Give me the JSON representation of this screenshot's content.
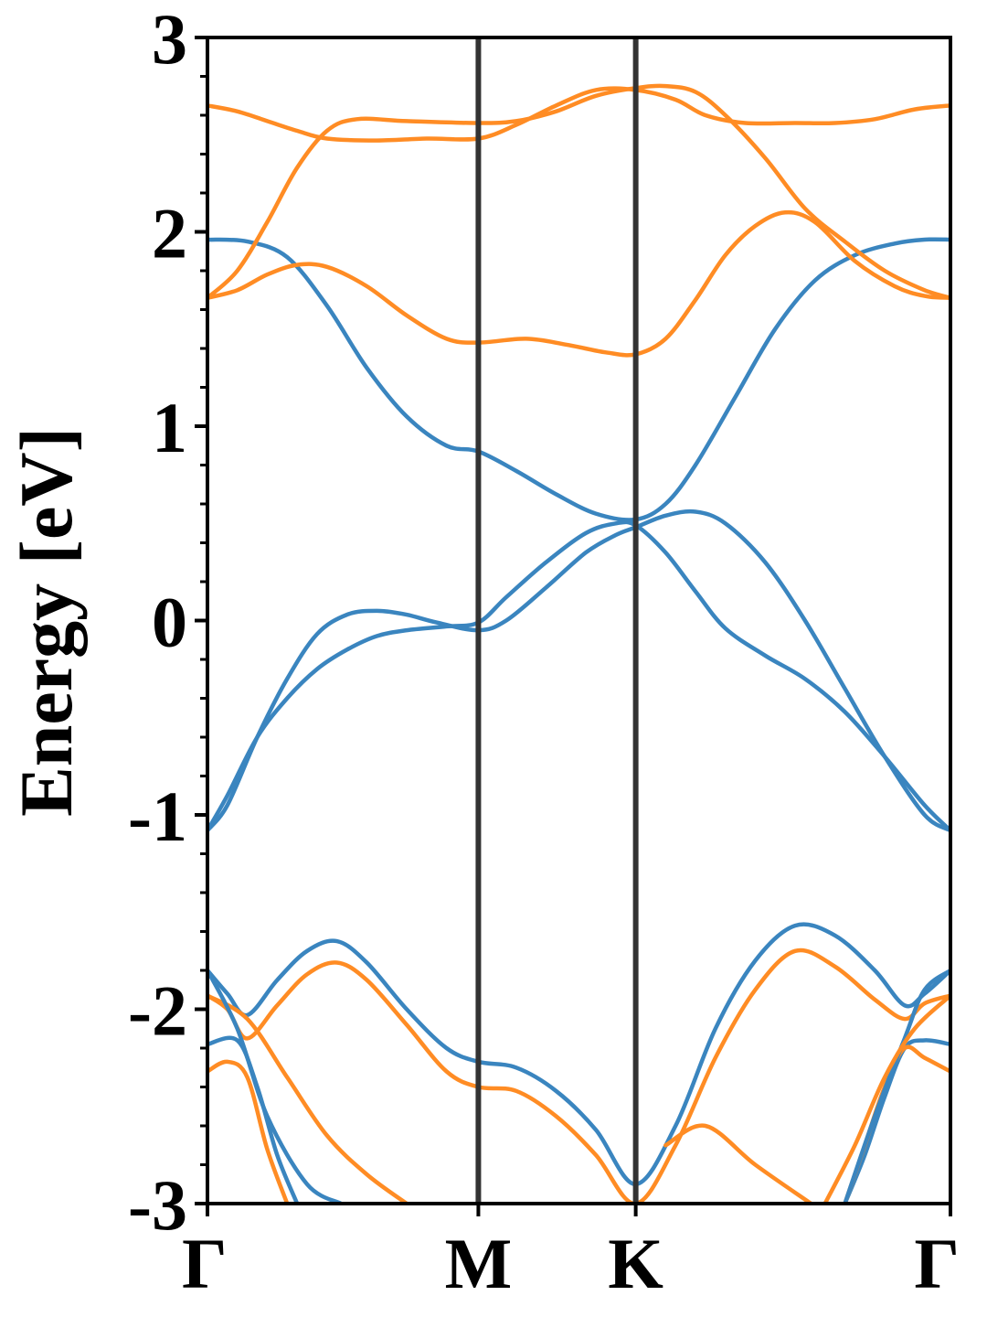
{
  "chart_data": {
    "type": "line",
    "title": "",
    "xlabel": "",
    "ylabel": "Energy [eV]",
    "ylim": [
      -3,
      3
    ],
    "yticks": [
      "-3",
      "-2",
      "-1",
      "0",
      "1",
      "2",
      "3"
    ],
    "xrange": [
      0,
      3.73
    ],
    "xticks": [
      {
        "label": "Γ",
        "x": 0
      },
      {
        "label": "M",
        "x": 1.36
      },
      {
        "label": "K",
        "x": 2.15
      },
      {
        "label": "Γ",
        "x": 3.73
      }
    ],
    "colors": {
      "blue": "#3a85bf",
      "orange": "#ff8c24",
      "axis": "#000000",
      "vline": "#333333"
    },
    "grid": false,
    "series": [
      {
        "color": "blue",
        "points": [
          [
            0,
            1.96
          ],
          [
            0.2,
            1.95
          ],
          [
            0.4,
            1.87
          ],
          [
            0.6,
            1.62
          ],
          [
            0.8,
            1.3
          ],
          [
            1.0,
            1.05
          ],
          [
            1.2,
            0.9
          ],
          [
            1.36,
            0.87
          ],
          [
            1.55,
            0.77
          ],
          [
            1.75,
            0.65
          ],
          [
            1.95,
            0.55
          ],
          [
            2.15,
            0.52
          ],
          [
            2.3,
            0.6
          ],
          [
            2.45,
            0.8
          ],
          [
            2.65,
            1.15
          ],
          [
            2.85,
            1.5
          ],
          [
            3.05,
            1.75
          ],
          [
            3.25,
            1.88
          ],
          [
            3.45,
            1.94
          ],
          [
            3.6,
            1.96
          ],
          [
            3.73,
            1.96
          ]
        ]
      },
      {
        "color": "blue",
        "points": [
          [
            0,
            -1.08
          ],
          [
            0.1,
            -0.95
          ],
          [
            0.25,
            -0.6
          ],
          [
            0.4,
            -0.3
          ],
          [
            0.55,
            -0.07
          ],
          [
            0.7,
            0.03
          ],
          [
            0.85,
            0.05
          ],
          [
            1.0,
            0.03
          ],
          [
            1.15,
            -0.01
          ],
          [
            1.36,
            -0.05
          ],
          [
            1.5,
            0.0
          ],
          [
            1.7,
            0.17
          ],
          [
            1.9,
            0.35
          ],
          [
            2.05,
            0.44
          ],
          [
            2.15,
            0.48
          ],
          [
            2.3,
            0.54
          ],
          [
            2.45,
            0.56
          ],
          [
            2.6,
            0.5
          ],
          [
            2.8,
            0.3
          ],
          [
            3.0,
            0.0
          ],
          [
            3.2,
            -0.35
          ],
          [
            3.4,
            -0.7
          ],
          [
            3.6,
            -1.0
          ],
          [
            3.73,
            -1.08
          ]
        ]
      },
      {
        "color": "blue",
        "points": [
          [
            0,
            -1.08
          ],
          [
            0.1,
            -0.9
          ],
          [
            0.25,
            -0.6
          ],
          [
            0.4,
            -0.4
          ],
          [
            0.55,
            -0.25
          ],
          [
            0.7,
            -0.15
          ],
          [
            0.85,
            -0.08
          ],
          [
            1.0,
            -0.05
          ],
          [
            1.2,
            -0.03
          ],
          [
            1.36,
            -0.01
          ],
          [
            1.5,
            0.12
          ],
          [
            1.7,
            0.3
          ],
          [
            1.9,
            0.45
          ],
          [
            2.05,
            0.5
          ],
          [
            2.15,
            0.49
          ],
          [
            2.3,
            0.35
          ],
          [
            2.45,
            0.15
          ],
          [
            2.6,
            -0.04
          ],
          [
            2.8,
            -0.18
          ],
          [
            3.0,
            -0.3
          ],
          [
            3.2,
            -0.47
          ],
          [
            3.4,
            -0.7
          ],
          [
            3.6,
            -0.95
          ],
          [
            3.73,
            -1.08
          ]
        ]
      },
      {
        "color": "blue",
        "points": [
          [
            0,
            -1.8
          ],
          [
            0.1,
            -1.92
          ],
          [
            0.2,
            -2.03
          ],
          [
            0.35,
            -1.85
          ],
          [
            0.5,
            -1.7
          ],
          [
            0.65,
            -1.65
          ],
          [
            0.8,
            -1.76
          ],
          [
            1.0,
            -2.0
          ],
          [
            1.2,
            -2.2
          ],
          [
            1.36,
            -2.27
          ],
          [
            1.55,
            -2.3
          ],
          [
            1.75,
            -2.42
          ],
          [
            1.95,
            -2.62
          ],
          [
            2.15,
            -2.9
          ],
          [
            2.35,
            -2.6
          ],
          [
            2.55,
            -2.1
          ],
          [
            2.75,
            -1.75
          ],
          [
            2.95,
            -1.57
          ],
          [
            3.15,
            -1.62
          ],
          [
            3.35,
            -1.8
          ],
          [
            3.5,
            -1.98
          ],
          [
            3.6,
            -1.92
          ],
          [
            3.73,
            -1.8
          ]
        ]
      },
      {
        "color": "orange",
        "points": [
          [
            0,
            2.65
          ],
          [
            0.15,
            2.62
          ],
          [
            0.3,
            2.57
          ],
          [
            0.45,
            2.52
          ],
          [
            0.6,
            2.48
          ],
          [
            0.85,
            2.47
          ],
          [
            1.1,
            2.48
          ],
          [
            1.36,
            2.48
          ],
          [
            1.55,
            2.55
          ],
          [
            1.75,
            2.65
          ],
          [
            1.95,
            2.73
          ],
          [
            2.15,
            2.73
          ],
          [
            2.35,
            2.68
          ],
          [
            2.5,
            2.6
          ],
          [
            2.7,
            2.56
          ],
          [
            2.95,
            2.56
          ],
          [
            3.15,
            2.56
          ],
          [
            3.35,
            2.58
          ],
          [
            3.55,
            2.63
          ],
          [
            3.73,
            2.65
          ]
        ]
      },
      {
        "color": "orange",
        "points": [
          [
            0,
            1.66
          ],
          [
            0.15,
            1.8
          ],
          [
            0.3,
            2.05
          ],
          [
            0.45,
            2.33
          ],
          [
            0.6,
            2.52
          ],
          [
            0.75,
            2.58
          ],
          [
            1.0,
            2.57
          ],
          [
            1.36,
            2.56
          ],
          [
            1.55,
            2.57
          ],
          [
            1.75,
            2.62
          ],
          [
            1.95,
            2.7
          ],
          [
            2.15,
            2.74
          ],
          [
            2.3,
            2.75
          ],
          [
            2.45,
            2.72
          ],
          [
            2.6,
            2.6
          ],
          [
            2.8,
            2.38
          ],
          [
            3.0,
            2.12
          ],
          [
            3.2,
            1.95
          ],
          [
            3.4,
            1.8
          ],
          [
            3.6,
            1.7
          ],
          [
            3.73,
            1.66
          ]
        ]
      },
      {
        "color": "orange",
        "points": [
          [
            0,
            1.66
          ],
          [
            0.15,
            1.7
          ],
          [
            0.3,
            1.78
          ],
          [
            0.45,
            1.83
          ],
          [
            0.6,
            1.82
          ],
          [
            0.8,
            1.72
          ],
          [
            1.0,
            1.57
          ],
          [
            1.2,
            1.45
          ],
          [
            1.36,
            1.43
          ],
          [
            1.6,
            1.45
          ],
          [
            1.8,
            1.42
          ],
          [
            2.0,
            1.38
          ],
          [
            2.15,
            1.37
          ],
          [
            2.3,
            1.45
          ],
          [
            2.45,
            1.65
          ],
          [
            2.6,
            1.88
          ],
          [
            2.75,
            2.03
          ],
          [
            2.9,
            2.1
          ],
          [
            3.05,
            2.05
          ],
          [
            3.25,
            1.85
          ],
          [
            3.45,
            1.72
          ],
          [
            3.6,
            1.67
          ],
          [
            3.73,
            1.66
          ]
        ]
      },
      {
        "color": "orange",
        "points": [
          [
            0,
            -1.93
          ],
          [
            0.1,
            -2.0
          ],
          [
            0.2,
            -2.15
          ],
          [
            0.35,
            -1.98
          ],
          [
            0.5,
            -1.82
          ],
          [
            0.65,
            -1.76
          ],
          [
            0.8,
            -1.85
          ],
          [
            1.0,
            -2.08
          ],
          [
            1.2,
            -2.32
          ],
          [
            1.36,
            -2.4
          ],
          [
            1.55,
            -2.42
          ],
          [
            1.75,
            -2.55
          ],
          [
            1.95,
            -2.75
          ],
          [
            2.15,
            -3.0
          ],
          [
            2.35,
            -2.7
          ],
          [
            2.55,
            -2.25
          ],
          [
            2.75,
            -1.9
          ],
          [
            2.95,
            -1.7
          ],
          [
            3.15,
            -1.78
          ],
          [
            3.35,
            -1.95
          ],
          [
            3.5,
            -2.05
          ],
          [
            3.6,
            -1.97
          ],
          [
            3.73,
            -1.93
          ]
        ]
      },
      {
        "color": "blue",
        "points": [
          [
            0,
            -2.18
          ],
          [
            0.15,
            -2.16
          ],
          [
            0.25,
            -2.4
          ],
          [
            0.35,
            -2.75
          ],
          [
            0.45,
            -3.0
          ]
        ]
      },
      {
        "color": "orange",
        "points": [
          [
            0,
            -2.32
          ],
          [
            0.1,
            -2.27
          ],
          [
            0.2,
            -2.35
          ],
          [
            0.3,
            -2.72
          ],
          [
            0.4,
            -3.0
          ]
        ]
      },
      {
        "color": "orange",
        "points": [
          [
            0,
            -1.93
          ],
          [
            0.2,
            -2.05
          ],
          [
            0.4,
            -2.35
          ],
          [
            0.6,
            -2.65
          ],
          [
            0.8,
            -2.85
          ],
          [
            1.0,
            -3.0
          ]
        ]
      },
      {
        "color": "blue",
        "points": [
          [
            0,
            -1.8
          ],
          [
            0.15,
            -2.1
          ],
          [
            0.3,
            -2.55
          ],
          [
            0.5,
            -2.9
          ],
          [
            0.67,
            -3.0
          ]
        ]
      },
      {
        "color": "blue",
        "points": [
          [
            3.73,
            -2.18
          ],
          [
            3.6,
            -2.16
          ],
          [
            3.5,
            -2.2
          ],
          [
            3.4,
            -2.45
          ],
          [
            3.3,
            -2.75
          ],
          [
            3.2,
            -3.0
          ]
        ]
      },
      {
        "color": "orange",
        "points": [
          [
            3.73,
            -2.32
          ],
          [
            3.6,
            -2.25
          ],
          [
            3.5,
            -2.2
          ],
          [
            3.4,
            -2.4
          ],
          [
            3.3,
            -2.7
          ],
          [
            3.2,
            -3.0
          ]
        ]
      },
      {
        "color": "blue",
        "points": [
          [
            3.73,
            -1.8
          ],
          [
            3.6,
            -1.9
          ],
          [
            3.5,
            -2.15
          ],
          [
            3.35,
            -2.55
          ],
          [
            3.2,
            -3.0
          ]
        ]
      },
      {
        "color": "orange",
        "points": [
          [
            3.73,
            -1.93
          ],
          [
            3.55,
            -2.1
          ],
          [
            3.4,
            -2.35
          ],
          [
            3.25,
            -2.7
          ],
          [
            3.1,
            -3.0
          ]
        ]
      },
      {
        "color": "orange",
        "points": [
          [
            2.3,
            -2.7
          ],
          [
            2.5,
            -2.6
          ],
          [
            2.75,
            -2.8
          ],
          [
            3.03,
            -3.0
          ]
        ]
      }
    ]
  }
}
